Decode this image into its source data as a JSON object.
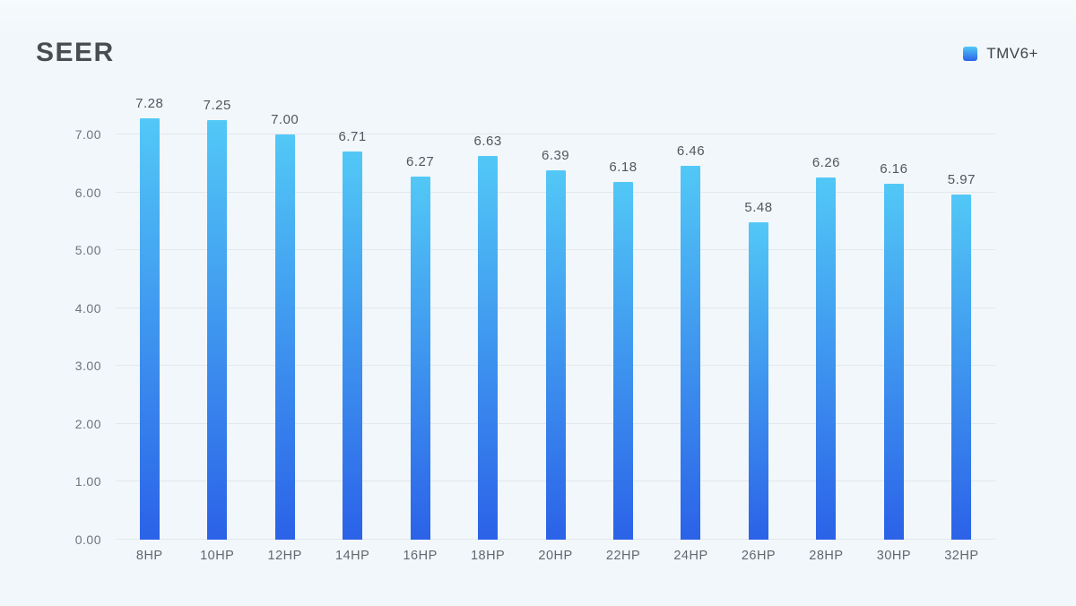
{
  "title": "SEER",
  "legend": {
    "label": "TMV6+"
  },
  "colors": {
    "background": "#f2f8fb",
    "bar_gradient_top": "#52c8f6",
    "bar_gradient_bottom": "#2b62e8",
    "gridline": "#e3e8ed",
    "title_text": "#494d52",
    "axis_text": "#6e747b",
    "value_text": "#53575d"
  },
  "chart_data": {
    "type": "bar",
    "title": "SEER",
    "series_name": "TMV6+",
    "categories": [
      "8HP",
      "10HP",
      "12HP",
      "14HP",
      "16HP",
      "18HP",
      "20HP",
      "22HP",
      "24HP",
      "26HP",
      "28HP",
      "30HP",
      "32HP"
    ],
    "values": [
      7.28,
      7.25,
      7.0,
      6.71,
      6.27,
      6.63,
      6.39,
      6.18,
      6.46,
      5.48,
      6.26,
      6.16,
      5.97
    ],
    "value_labels": [
      "7.28",
      "7.25",
      "7.00",
      "6.71",
      "6.27",
      "6.63",
      "6.39",
      "6.18",
      "6.46",
      "5.48",
      "6.26",
      "6.16",
      "5.97"
    ],
    "xlabel": "",
    "ylabel": "",
    "ylim": [
      0,
      7.47
    ],
    "y_ticks": [
      "0.00",
      "1.00",
      "2.00",
      "3.00",
      "4.00",
      "5.00",
      "6.00",
      "7.00"
    ],
    "grid": true,
    "legend_position": "top-right"
  }
}
